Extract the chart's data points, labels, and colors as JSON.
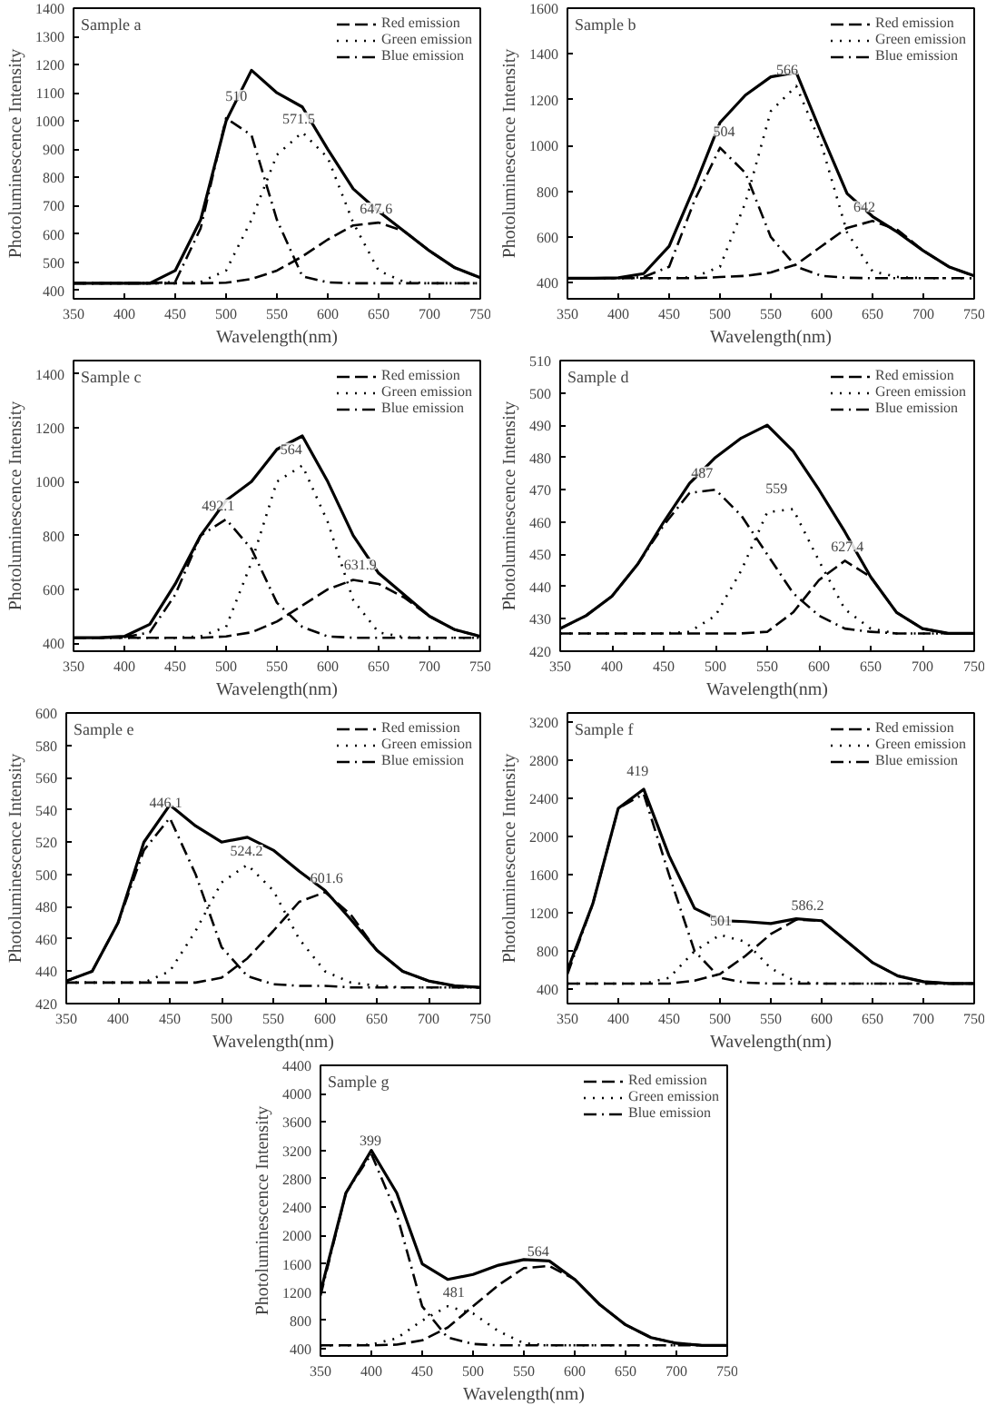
{
  "chart_data": [
    {
      "type": "line",
      "title": "Sample a",
      "xlabel": "Wavelength(nm)",
      "ylabel": "Photoluminescence Intensity",
      "legend": "top right",
      "xlim": [
        350,
        750
      ],
      "ylim": [
        370,
        1400
      ],
      "xticks": [
        350,
        400,
        450,
        500,
        550,
        600,
        650,
        700,
        750
      ],
      "yticks": [
        400,
        500,
        600,
        700,
        800,
        900,
        1000,
        1100,
        1200,
        1300,
        1400
      ],
      "x": [
        350,
        375,
        400,
        425,
        450,
        475,
        500,
        525,
        550,
        575,
        600,
        625,
        650,
        675,
        700,
        725,
        750
      ],
      "series": [
        {
          "color": "#000000",
          "line_style": "solid",
          "values": [
            425,
            425,
            425,
            425,
            470,
            650,
            1000,
            1180,
            1100,
            1050,
            900,
            760,
            680,
            610,
            540,
            480,
            445
          ]
        },
        {
          "name": "Red emission",
          "color": "#000000",
          "line_style": "dashed",
          "values": [
            425,
            425,
            425,
            425,
            425,
            425,
            427,
            440,
            470,
            520,
            580,
            630,
            640,
            610,
            540,
            480,
            445
          ]
        },
        {
          "name": "Green emission",
          "color": "#000000",
          "line_style": "dotted",
          "values": [
            425,
            425,
            425,
            425,
            425,
            430,
            470,
            650,
            880,
            960,
            870,
            640,
            470,
            430,
            425,
            425,
            425
          ]
        },
        {
          "name": "Blue emission",
          "color": "#000000",
          "line_style": "dashdot",
          "values": [
            425,
            425,
            425,
            425,
            430,
            620,
            1010,
            950,
            650,
            450,
            428,
            425,
            425,
            425,
            425,
            425,
            425
          ]
        }
      ],
      "annotations": [
        {
          "text": "510",
          "x": 510,
          "y": 1040
        },
        {
          "text": "571.5",
          "x": 571.5,
          "y": 960
        },
        {
          "text": "647.6",
          "x": 647.6,
          "y": 640
        }
      ]
    },
    {
      "type": "line",
      "title": "Sample b",
      "xlabel": "Wavelength(nm)",
      "ylabel": "Photoluminescence Intensity",
      "legend": "top right",
      "xlim": [
        350,
        750
      ],
      "ylim": [
        330,
        1600
      ],
      "xticks": [
        350,
        400,
        450,
        500,
        550,
        600,
        650,
        700,
        750
      ],
      "yticks": [
        400,
        600,
        800,
        1000,
        1200,
        1400,
        1600
      ],
      "x": [
        350,
        375,
        400,
        425,
        450,
        475,
        500,
        525,
        550,
        575,
        600,
        625,
        650,
        675,
        700,
        725,
        750
      ],
      "series": [
        {
          "color": "#000000",
          "line_style": "solid",
          "values": [
            420,
            420,
            422,
            440,
            560,
            820,
            1100,
            1220,
            1300,
            1320,
            1050,
            790,
            690,
            620,
            540,
            470,
            430
          ]
        },
        {
          "name": "Red emission",
          "color": "#000000",
          "line_style": "dashed",
          "values": [
            420,
            420,
            420,
            420,
            420,
            420,
            425,
            430,
            445,
            480,
            560,
            640,
            670,
            630,
            540,
            470,
            430
          ]
        },
        {
          "name": "Green emission",
          "color": "#000000",
          "line_style": "dotted",
          "values": [
            420,
            420,
            420,
            420,
            420,
            425,
            470,
            750,
            1150,
            1260,
            1000,
            620,
            450,
            425,
            420,
            420,
            420
          ]
        },
        {
          "name": "Blue emission",
          "color": "#000000",
          "line_style": "dashdot",
          "values": [
            420,
            420,
            420,
            425,
            470,
            760,
            990,
            880,
            600,
            470,
            430,
            422,
            420,
            420,
            420,
            420,
            420
          ]
        }
      ],
      "annotations": [
        {
          "text": "504",
          "x": 504,
          "y": 1000
        },
        {
          "text": "566",
          "x": 566,
          "y": 1270
        },
        {
          "text": "642",
          "x": 642,
          "y": 670
        }
      ]
    },
    {
      "type": "line",
      "title": "Sample c",
      "xlabel": "Wavelength(nm)",
      "ylabel": "Photoluminescence Intensity",
      "legend": "top right",
      "xlim": [
        350,
        750
      ],
      "ylim": [
        370,
        1450
      ],
      "xticks": [
        350,
        400,
        450,
        500,
        550,
        600,
        650,
        700,
        750
      ],
      "yticks": [
        400,
        600,
        800,
        1000,
        1200,
        1400
      ],
      "x": [
        350,
        375,
        400,
        425,
        450,
        475,
        500,
        525,
        550,
        575,
        600,
        625,
        650,
        675,
        700,
        725,
        750
      ],
      "series": [
        {
          "color": "#000000",
          "line_style": "solid",
          "values": [
            420,
            420,
            425,
            470,
            620,
            800,
            930,
            1000,
            1120,
            1170,
            1000,
            800,
            660,
            580,
            500,
            450,
            425
          ]
        },
        {
          "name": "Red emission",
          "color": "#000000",
          "line_style": "dashed",
          "values": [
            420,
            420,
            420,
            420,
            420,
            420,
            425,
            440,
            480,
            540,
            600,
            635,
            620,
            570,
            500,
            450,
            425
          ]
        },
        {
          "name": "Green emission",
          "color": "#000000",
          "line_style": "dotted",
          "values": [
            420,
            420,
            420,
            420,
            420,
            425,
            460,
            700,
            1000,
            1060,
            850,
            560,
            440,
            422,
            420,
            420,
            420
          ]
        },
        {
          "name": "Blue emission",
          "color": "#000000",
          "line_style": "dashdot",
          "values": [
            420,
            420,
            422,
            440,
            580,
            800,
            860,
            750,
            550,
            460,
            425,
            420,
            420,
            420,
            420,
            420,
            420
          ]
        }
      ],
      "annotations": [
        {
          "text": "492.1",
          "x": 492.1,
          "y": 860
        },
        {
          "text": "564",
          "x": 564,
          "y": 1070
        },
        {
          "text": "631.9",
          "x": 631.9,
          "y": 640
        }
      ]
    },
    {
      "type": "line",
      "title": "Sample d",
      "xlabel": "Wavelength(nm)",
      "ylabel": "Photoluminescence Intensity",
      "legend": "top right",
      "xlim": [
        350,
        750
      ],
      "ylim": [
        420,
        510
      ],
      "xticks": [
        350,
        400,
        450,
        500,
        550,
        600,
        650,
        700,
        750
      ],
      "yticks": [
        420,
        430,
        440,
        450,
        460,
        470,
        480,
        490,
        500,
        510
      ],
      "x": [
        350,
        375,
        400,
        425,
        450,
        475,
        500,
        525,
        550,
        575,
        600,
        625,
        650,
        675,
        700,
        725,
        750
      ],
      "series": [
        {
          "color": "#000000",
          "line_style": "solid",
          "values": [
            427,
            431,
            437,
            447,
            460,
            472,
            480,
            486,
            490,
            482,
            470,
            457,
            443,
            432,
            427,
            425.5,
            425.5
          ]
        },
        {
          "name": "Red emission",
          "color": "#000000",
          "line_style": "dashed",
          "values": [
            425.5,
            425.5,
            425.5,
            425.5,
            425.5,
            425.5,
            425.5,
            425.5,
            426,
            432,
            442,
            448,
            443,
            432,
            427,
            425.5,
            425.5
          ]
        },
        {
          "name": "Green emission",
          "color": "#000000",
          "line_style": "dotted",
          "values": [
            425.5,
            425.5,
            425.5,
            425.5,
            425.5,
            426,
            431,
            445,
            463,
            464,
            448,
            433,
            427,
            425.5,
            425.5,
            425.5,
            425.5
          ]
        },
        {
          "name": "Blue emission",
          "color": "#000000",
          "line_style": "dashdot",
          "values": [
            427,
            431,
            437,
            447,
            459,
            469,
            470,
            462,
            450,
            438,
            431,
            427,
            426,
            425.5,
            425.5,
            425.5,
            425.5
          ]
        }
      ],
      "annotations": [
        {
          "text": "487",
          "x": 487,
          "y": 471
        },
        {
          "text": "559",
          "x": 559,
          "y": 466
        },
        {
          "text": "627.4",
          "x": 627.4,
          "y": 448
        }
      ]
    },
    {
      "type": "line",
      "title": "Sample e",
      "xlabel": "Wavelength(nm)",
      "ylabel": "Photoluminescence Intensity",
      "legend": "top right",
      "xlim": [
        350,
        750
      ],
      "ylim": [
        420,
        600
      ],
      "xticks": [
        350,
        400,
        450,
        500,
        550,
        600,
        650,
        700,
        750
      ],
      "yticks": [
        420,
        440,
        460,
        480,
        500,
        520,
        540,
        560,
        580,
        600
      ],
      "x": [
        350,
        375,
        400,
        425,
        450,
        475,
        500,
        525,
        550,
        575,
        600,
        625,
        650,
        675,
        700,
        725,
        750
      ],
      "series": [
        {
          "color": "#000000",
          "line_style": "solid",
          "values": [
            434,
            440,
            470,
            520,
            543,
            530,
            520,
            523,
            515,
            502,
            490,
            472,
            453,
            440,
            434,
            431,
            430
          ]
        },
        {
          "name": "Red emission",
          "color": "#000000",
          "line_style": "dashed",
          "values": [
            433,
            433,
            433,
            433,
            433,
            433,
            436,
            448,
            465,
            483,
            489,
            475,
            453,
            440,
            434,
            431,
            430
          ]
        },
        {
          "name": "Green emission",
          "color": "#000000",
          "line_style": "dotted",
          "values": [
            433,
            433,
            433,
            433,
            440,
            465,
            495,
            506,
            490,
            460,
            440,
            433,
            431,
            430,
            430,
            430,
            430
          ]
        },
        {
          "name": "Blue emission",
          "color": "#000000",
          "line_style": "dashdot",
          "values": [
            434,
            440,
            470,
            515,
            535,
            500,
            455,
            437,
            432,
            431,
            431,
            430,
            430,
            430,
            430,
            430,
            430
          ]
        }
      ],
      "annotations": [
        {
          "text": "446.1",
          "x": 446.1,
          "y": 536
        },
        {
          "text": "524.2",
          "x": 524.2,
          "y": 506
        },
        {
          "text": "601.6",
          "x": 601.6,
          "y": 489
        }
      ]
    },
    {
      "type": "line",
      "title": "Sample f",
      "xlabel": "Wavelength(nm)",
      "ylabel": "Photoluminescence Intensity",
      "legend": "top right",
      "xlim": [
        350,
        750
      ],
      "ylim": [
        250,
        3300
      ],
      "xticks": [
        350,
        400,
        450,
        500,
        550,
        600,
        650,
        700,
        750
      ],
      "yticks": [
        400,
        800,
        1200,
        1600,
        2000,
        2400,
        2800,
        3200
      ],
      "x": [
        350,
        375,
        400,
        425,
        450,
        475,
        500,
        525,
        550,
        575,
        600,
        625,
        650,
        675,
        700,
        725,
        750
      ],
      "series": [
        {
          "color": "#000000",
          "line_style": "solid",
          "values": [
            600,
            1300,
            2300,
            2500,
            1800,
            1250,
            1120,
            1110,
            1090,
            1140,
            1120,
            900,
            680,
            540,
            480,
            460,
            460
          ]
        },
        {
          "name": "Red emission",
          "color": "#000000",
          "line_style": "dashed",
          "values": [
            460,
            460,
            460,
            460,
            460,
            490,
            560,
            750,
            980,
            1130,
            1120,
            900,
            680,
            540,
            480,
            460,
            460
          ]
        },
        {
          "name": "Green emission",
          "color": "#000000",
          "line_style": "dotted",
          "values": [
            460,
            460,
            460,
            460,
            520,
            800,
            970,
            900,
            620,
            480,
            460,
            460,
            460,
            460,
            460,
            460,
            460
          ]
        },
        {
          "name": "Blue emission",
          "color": "#000000",
          "line_style": "dashdot",
          "values": [
            560,
            1300,
            2300,
            2450,
            1600,
            800,
            520,
            470,
            460,
            460,
            460,
            460,
            460,
            460,
            460,
            460,
            460
          ]
        }
      ],
      "annotations": [
        {
          "text": "419",
          "x": 419,
          "y": 2550
        },
        {
          "text": "501",
          "x": 501,
          "y": 970
        },
        {
          "text": "586.2",
          "x": 586.2,
          "y": 1140
        }
      ]
    },
    {
      "type": "line",
      "title": "Sample g",
      "xlabel": "Wavelength(nm)",
      "ylabel": "Photoluminescence Intensity",
      "legend": "top right",
      "xlim": [
        350,
        750
      ],
      "ylim": [
        300,
        4400
      ],
      "xticks": [
        350,
        400,
        450,
        500,
        550,
        600,
        650,
        700,
        750
      ],
      "yticks": [
        400,
        800,
        1200,
        1600,
        2000,
        2400,
        2800,
        3200,
        3600,
        4000,
        4400
      ],
      "x": [
        350,
        375,
        400,
        425,
        450,
        475,
        500,
        525,
        550,
        575,
        600,
        625,
        650,
        675,
        700,
        725,
        750
      ],
      "series": [
        {
          "color": "#000000",
          "line_style": "solid",
          "values": [
            1200,
            2600,
            3200,
            2600,
            1600,
            1380,
            1450,
            1580,
            1660,
            1640,
            1380,
            1020,
            740,
            560,
            480,
            450,
            450
          ]
        },
        {
          "name": "Red emission",
          "color": "#000000",
          "line_style": "dashed",
          "values": [
            450,
            450,
            450,
            460,
            520,
            700,
            1000,
            1300,
            1540,
            1570,
            1380,
            1020,
            740,
            560,
            480,
            450,
            450
          ]
        },
        {
          "name": "Green emission",
          "color": "#000000",
          "line_style": "dotted",
          "x": [
            350,
            375,
            400,
            425,
            450,
            475,
            500,
            525,
            550,
            575,
            600,
            625,
            650,
            675,
            700
          ],
          "values": [
            450,
            450,
            460,
            550,
            800,
            1000,
            900,
            650,
            480,
            450,
            450,
            450,
            450,
            450,
            450
          ]
        },
        {
          "name": "Blue emission",
          "color": "#000000",
          "line_style": "dashdot",
          "values": [
            1150,
            2600,
            3150,
            2300,
            1000,
            560,
            470,
            450,
            450,
            450,
            450,
            450,
            450,
            450,
            450,
            450,
            450
          ]
        }
      ],
      "annotations": [
        {
          "text": "399",
          "x": 399,
          "y": 3150
        },
        {
          "text": "481",
          "x": 481,
          "y": 1000
        },
        {
          "text": "564",
          "x": 564,
          "y": 1580
        }
      ]
    }
  ]
}
